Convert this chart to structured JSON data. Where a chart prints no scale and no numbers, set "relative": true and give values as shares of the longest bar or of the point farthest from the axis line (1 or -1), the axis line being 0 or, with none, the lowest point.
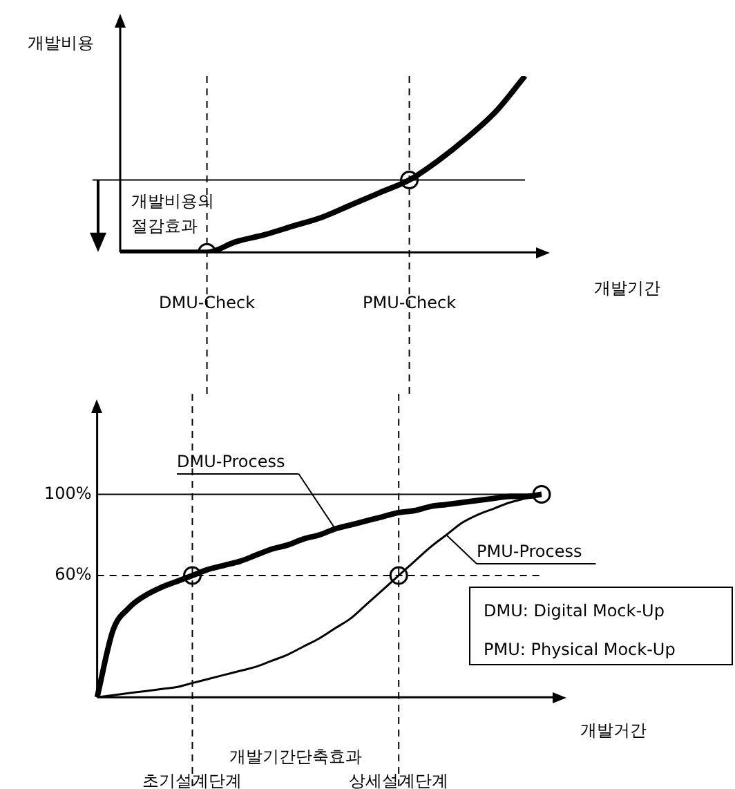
{
  "chart_data": [
    {
      "type": "line",
      "ylabel": "개발비용",
      "xlabel": "개발기간",
      "relative": true,
      "tick_labels": "x",
      "grid": false,
      "categories": [
        null,
        null,
        null,
        "DMU-Check",
        null,
        null,
        null,
        null,
        null,
        null,
        "PMU-Check",
        null,
        null,
        null,
        null
      ],
      "series": [
        {
          "type": "line",
          "color": "#000000",
          "marker": "none",
          "line_style": "solid",
          "values": [
            0,
            0,
            0,
            0,
            0.06,
            0.1,
            0.15,
            0.2,
            0.27,
            0.34,
            0.41,
            0.52,
            0.65,
            0.8,
            1
          ]
        },
        {
          "type": "scatter",
          "color": "#000000",
          "marker": "circle",
          "values": [
            null,
            null,
            null,
            0,
            null,
            null,
            null,
            null,
            null,
            null,
            0.41,
            null,
            null,
            null,
            null
          ]
        }
      ],
      "ref_lines": [
        {
          "axis": "y",
          "value": 0.41,
          "line_style": "solid"
        },
        {
          "axis": "x",
          "value": "DMU-Check",
          "line_style": "dashed"
        },
        {
          "axis": "x",
          "value": "PMU-Check",
          "line_style": "dashed"
        }
      ],
      "annotations": [
        "개발비용의 절감효과"
      ]
    },
    {
      "type": "line",
      "xlabel": "개발거간",
      "grid": false,
      "ylim": [
        0,
        140
      ],
      "yticks": [
        {
          "value": 60,
          "label": "60%"
        },
        {
          "value": 100,
          "label": "100%"
        }
      ],
      "categories": [
        null,
        null,
        null,
        null,
        null,
        null,
        "초기설계단계",
        null,
        null,
        null,
        null,
        null,
        null,
        null,
        null,
        null,
        null,
        null,
        null,
        "상세설계단계",
        null,
        null,
        null,
        null,
        null,
        null,
        null,
        null,
        null
      ],
      "series": [
        {
          "type": "line",
          "name": "DMU-Process",
          "color": "#000000",
          "marker": "none",
          "line_style": "solid",
          "values": [
            0,
            33,
            44,
            50,
            54,
            57,
            60,
            63,
            65,
            67,
            70,
            73,
            75,
            78,
            80,
            83,
            85,
            87,
            89,
            91,
            92,
            94,
            95,
            96,
            97,
            98,
            99,
            99,
            100
          ]
        },
        {
          "type": "line",
          "name": "PMU-Process",
          "color": "#000000",
          "marker": "none",
          "line_style": "solid",
          "values": [
            0,
            1,
            2,
            3,
            4,
            5,
            7,
            9,
            11,
            13,
            15,
            18,
            21,
            25,
            29,
            34,
            39,
            46,
            53,
            60,
            67,
            74,
            80,
            86,
            90,
            93,
            96,
            98,
            100
          ]
        },
        {
          "type": "scatter",
          "color": "#000000",
          "marker": "circle",
          "values": [
            null,
            null,
            null,
            null,
            null,
            null,
            60,
            null,
            null,
            null,
            null,
            null,
            null,
            null,
            null,
            null,
            null,
            null,
            null,
            60,
            null,
            null,
            null,
            null,
            null,
            null,
            null,
            null,
            100
          ]
        }
      ],
      "ref_lines": [
        {
          "axis": "y",
          "value": 100,
          "line_style": "solid"
        },
        {
          "axis": "y",
          "value": 60,
          "line_style": "dashed"
        },
        {
          "axis": "x",
          "value": "초기설계단계",
          "line_style": "dashed"
        },
        {
          "axis": "x",
          "value": "상세설계단계",
          "line_style": "dashed"
        }
      ],
      "annotations": [
        "개발기간단축효과",
        "DMU: Digital Mock-Up",
        "PMU: Physical Mock-Up"
      ]
    }
  ]
}
